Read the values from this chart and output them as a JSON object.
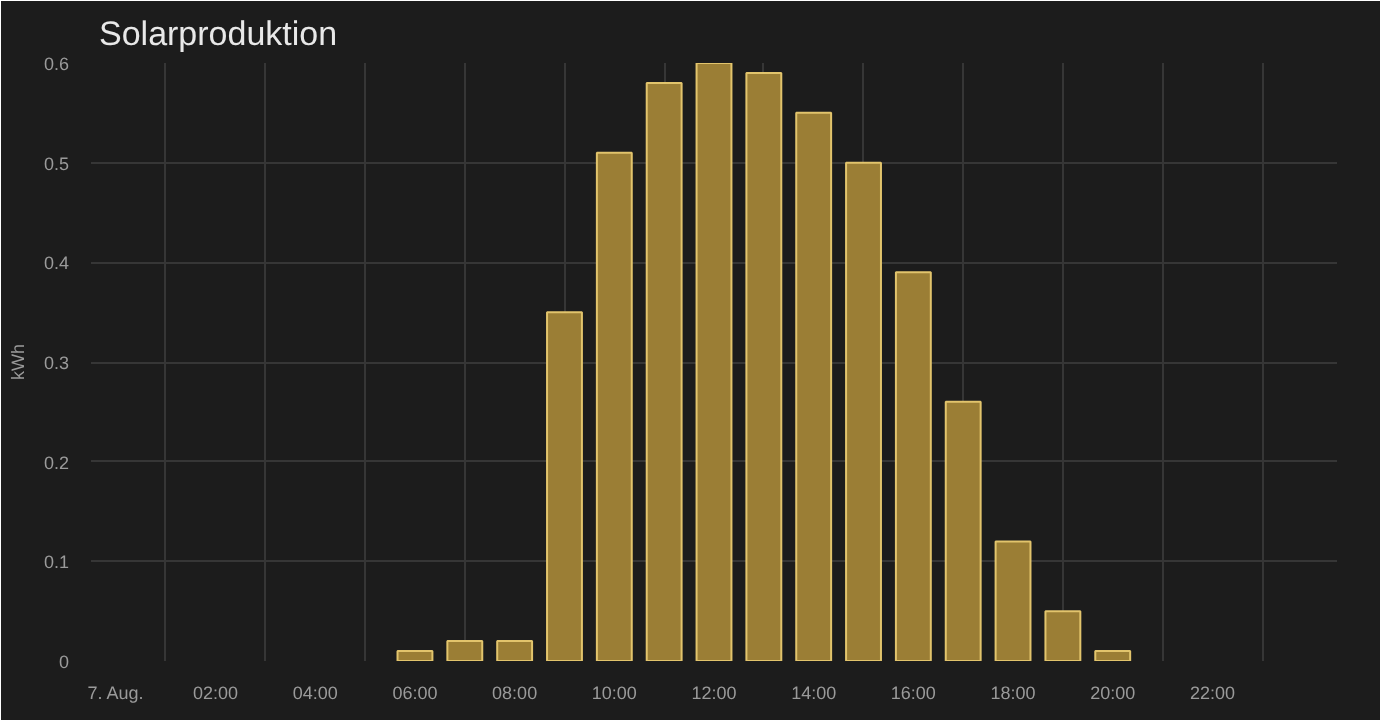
{
  "chart_data": {
    "type": "bar",
    "title": "Solarproduktion",
    "ylabel": "kWh",
    "x": [
      6,
      7,
      8,
      9,
      10,
      11,
      12,
      13,
      14,
      15,
      16,
      17,
      18,
      19,
      20
    ],
    "values": [
      0.01,
      0.02,
      0.02,
      0.35,
      0.51,
      0.58,
      0.6,
      0.59,
      0.55,
      0.5,
      0.39,
      0.26,
      0.12,
      0.05,
      0.01
    ],
    "color": "#9b7e35",
    "xlim": [
      -0.5,
      24.5
    ],
    "xticks": [
      {
        "value": 0,
        "label": "7. Aug."
      },
      {
        "value": 1,
        "label": null
      },
      {
        "value": 2,
        "label": "02:00"
      },
      {
        "value": 3,
        "label": null
      },
      {
        "value": 4,
        "label": "04:00"
      },
      {
        "value": 5,
        "label": null
      },
      {
        "value": 6,
        "label": "06:00"
      },
      {
        "value": 7,
        "label": null
      },
      {
        "value": 8,
        "label": "08:00"
      },
      {
        "value": 9,
        "label": null
      },
      {
        "value": 10,
        "label": "10:00"
      },
      {
        "value": 11,
        "label": null
      },
      {
        "value": 12,
        "label": "12:00"
      },
      {
        "value": 13,
        "label": null
      },
      {
        "value": 14,
        "label": "14:00"
      },
      {
        "value": 15,
        "label": null
      },
      {
        "value": 16,
        "label": "16:00"
      },
      {
        "value": 17,
        "label": null
      },
      {
        "value": 18,
        "label": "18:00"
      },
      {
        "value": 19,
        "label": null
      },
      {
        "value": 20,
        "label": "20:00"
      },
      {
        "value": 21,
        "label": null
      },
      {
        "value": 22,
        "label": "22:00"
      },
      {
        "value": 23,
        "label": null
      }
    ],
    "ylim": [
      0,
      0.6
    ],
    "yticks": [
      {
        "value": 0,
        "label": "0"
      },
      {
        "value": 0.1,
        "label": "0.1"
      },
      {
        "value": 0.2,
        "label": "0.2"
      },
      {
        "value": 0.3,
        "label": "0.3"
      },
      {
        "value": 0.4,
        "label": "0.4"
      },
      {
        "value": 0.5,
        "label": "0.5"
      },
      {
        "value": 0.6,
        "label": "0.6"
      }
    ],
    "grid": true
  }
}
